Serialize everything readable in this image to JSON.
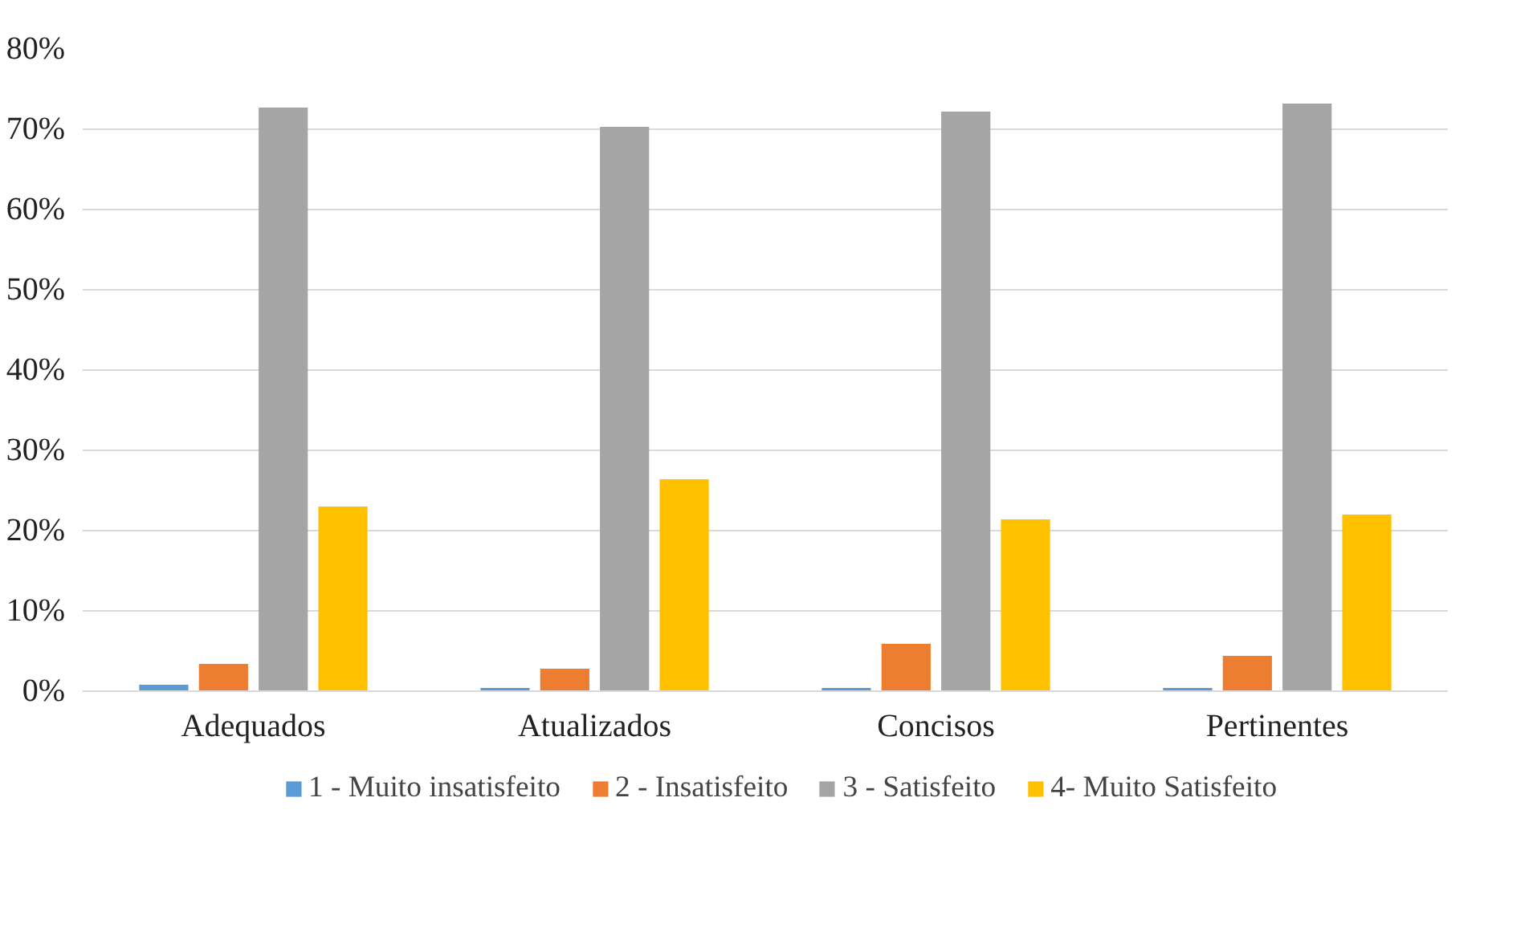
{
  "chart_data": {
    "type": "bar",
    "categories": [
      "Adequados",
      "Atualizados",
      "Concisos",
      "Pertinentes"
    ],
    "series": [
      {
        "name": "1 - Muito insatisfeito",
        "color": "#5b9bd5",
        "values": [
          0.8,
          0.4,
          0.4,
          0.4
        ]
      },
      {
        "name": "2 - Insatisfeito",
        "color": "#ed7d31",
        "values": [
          3.4,
          2.8,
          5.9,
          4.4
        ]
      },
      {
        "name": "3 - Satisfeito",
        "color": "#a5a5a5",
        "values": [
          72.7,
          70.3,
          72.2,
          73.2
        ]
      },
      {
        "name": "4- Muito Satisfeito",
        "color": "#ffc000",
        "values": [
          23.0,
          26.4,
          21.4,
          22.0
        ]
      }
    ],
    "ylim": [
      0,
      80
    ],
    "yticks": [
      {
        "value": 0,
        "label": "0%"
      },
      {
        "value": 10,
        "label": "10%"
      },
      {
        "value": 20,
        "label": "20%"
      },
      {
        "value": 30,
        "label": "30%"
      },
      {
        "value": 40,
        "label": "40%"
      },
      {
        "value": 50,
        "label": "50%"
      },
      {
        "value": 60,
        "label": "60%"
      },
      {
        "value": 70,
        "label": "70%"
      },
      {
        "value": 80,
        "label": "80%"
      }
    ],
    "grid": "y",
    "legend": "bottom"
  }
}
